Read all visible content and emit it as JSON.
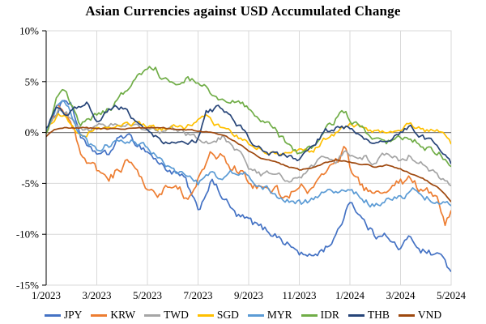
{
  "title": "Asian Currencies against USD Accumulated Change",
  "colors": {
    "background": "#FFFFFF",
    "grid": "#D9D9D9",
    "frame": "#BFBFBF",
    "zero_line": "#7F7F7F",
    "axis": "#000000",
    "text": "#000000"
  },
  "chart_data": {
    "type": "line",
    "title": "Asian Currencies against USD Accumulated Change",
    "xlabel": "",
    "ylabel": "",
    "x_unit": "month index from 1/2023",
    "xlim": [
      0,
      16
    ],
    "ylim": [
      -15,
      10
    ],
    "grid": true,
    "legend_position": "bottom",
    "x_ticks": [
      {
        "pos": 0,
        "label": "1/2023"
      },
      {
        "pos": 2,
        "label": "3/2023"
      },
      {
        "pos": 4,
        "label": "5/2023"
      },
      {
        "pos": 6,
        "label": "7/2023"
      },
      {
        "pos": 8,
        "label": "9/2023"
      },
      {
        "pos": 10,
        "label": "11/2023"
      },
      {
        "pos": 12,
        "label": "1/2024"
      },
      {
        "pos": 14,
        "label": "3/2024"
      },
      {
        "pos": 16,
        "label": "5/2024"
      }
    ],
    "y_ticks": [
      {
        "pos": 10,
        "label": "10%"
      },
      {
        "pos": 5,
        "label": "5%"
      },
      {
        "pos": 0,
        "label": "0%"
      },
      {
        "pos": -5,
        "label": "-5%"
      },
      {
        "pos": -10,
        "label": "-10%"
      },
      {
        "pos": -15,
        "label": "-15%"
      }
    ],
    "series": [
      {
        "name": "JPY",
        "color": "#4472C4",
        "jitter": 0.7,
        "points": [
          [
            0,
            0.3
          ],
          [
            0.3,
            1.5
          ],
          [
            0.7,
            3.5
          ],
          [
            1,
            2.6
          ],
          [
            1.4,
            -0.5
          ],
          [
            1.7,
            -1.9
          ],
          [
            2,
            -2.0
          ],
          [
            2.4,
            -2.3
          ],
          [
            3,
            -0.2
          ],
          [
            3.5,
            -0.9
          ],
          [
            4,
            -1.8
          ],
          [
            4.5,
            -3.1
          ],
          [
            5,
            -3.9
          ],
          [
            5.5,
            -4.7
          ],
          [
            6,
            -7.9
          ],
          [
            6.5,
            -4.7
          ],
          [
            7,
            -6.4
          ],
          [
            7.5,
            -8.2
          ],
          [
            8,
            -8.7
          ],
          [
            8.5,
            -9.4
          ],
          [
            9,
            -9.9
          ],
          [
            9.5,
            -10.9
          ],
          [
            10,
            -11.8
          ],
          [
            10.4,
            -12.3
          ],
          [
            11,
            -11.4
          ],
          [
            11.5,
            -10.1
          ],
          [
            12,
            -6.5
          ],
          [
            12.5,
            -8.6
          ],
          [
            13,
            -10.2
          ],
          [
            13.3,
            -9.6
          ],
          [
            13.6,
            -10.8
          ],
          [
            14,
            -11.4
          ],
          [
            14.4,
            -10.3
          ],
          [
            14.8,
            -11.4
          ],
          [
            15,
            -11.7
          ],
          [
            15.4,
            -12.0
          ],
          [
            15.7,
            -12.2
          ],
          [
            16,
            -13.8
          ]
        ]
      },
      {
        "name": "KRW",
        "color": "#ED7D31",
        "jitter": 0.85,
        "points": [
          [
            0,
            -0.3
          ],
          [
            0.4,
            2.4
          ],
          [
            0.8,
            2.2
          ],
          [
            1.2,
            -0.5
          ],
          [
            1.6,
            -3.1
          ],
          [
            2,
            -3.9
          ],
          [
            2.5,
            -4.6
          ],
          [
            3,
            -3.3
          ],
          [
            3.4,
            -2.7
          ],
          [
            3.8,
            -4.5
          ],
          [
            4,
            -5.3
          ],
          [
            4.4,
            -5.9
          ],
          [
            4.8,
            -5.0
          ],
          [
            5.2,
            -5.6
          ],
          [
            5.6,
            -6.3
          ],
          [
            6,
            -4.6
          ],
          [
            6.5,
            -1.9
          ],
          [
            7,
            -2.6
          ],
          [
            7.5,
            -3.6
          ],
          [
            8,
            -4.9
          ],
          [
            8.5,
            -5.3
          ],
          [
            9,
            -5.6
          ],
          [
            9.5,
            -6.4
          ],
          [
            10,
            -5.3
          ],
          [
            10.5,
            -5.9
          ],
          [
            11,
            -3.6
          ],
          [
            11.5,
            -2.9
          ],
          [
            11.8,
            -1.8
          ],
          [
            12.2,
            -4.9
          ],
          [
            12.6,
            -5.6
          ],
          [
            13,
            -6.2
          ],
          [
            13.5,
            -5.4
          ],
          [
            14,
            -5.0
          ],
          [
            14.3,
            -4.5
          ],
          [
            14.7,
            -5.3
          ],
          [
            15,
            -5.7
          ],
          [
            15.4,
            -6.1
          ],
          [
            15.75,
            -8.8
          ],
          [
            16,
            -7.7
          ]
        ]
      },
      {
        "name": "TWD",
        "color": "#A5A5A5",
        "jitter": 0.5,
        "points": [
          [
            0,
            0.2
          ],
          [
            0.5,
            2.1
          ],
          [
            0.8,
            1.9
          ],
          [
            1.3,
            0.2
          ],
          [
            2,
            0.5
          ],
          [
            2.5,
            0.7
          ],
          [
            3,
            0.8
          ],
          [
            3.5,
            0.4
          ],
          [
            4,
            0.3
          ],
          [
            4.5,
            0.1
          ],
          [
            5,
            0.3
          ],
          [
            5.5,
            -0.2
          ],
          [
            6,
            -0.5
          ],
          [
            6.5,
            -1.1
          ],
          [
            7,
            -0.4
          ],
          [
            7.5,
            -1.6
          ],
          [
            8,
            -3.4
          ],
          [
            8.5,
            -4.1
          ],
          [
            9,
            -3.9
          ],
          [
            9.5,
            -4.6
          ],
          [
            10,
            -4.4
          ],
          [
            10.6,
            -3.2
          ],
          [
            11,
            -2.2
          ],
          [
            11.4,
            -3.1
          ],
          [
            11.8,
            -1.6
          ],
          [
            12.2,
            -2.7
          ],
          [
            12.6,
            -2.4
          ],
          [
            13,
            -3.0
          ],
          [
            13.4,
            -2.1
          ],
          [
            14,
            -2.8
          ],
          [
            14.4,
            -2.2
          ],
          [
            15,
            -3.4
          ],
          [
            15.5,
            -4.3
          ],
          [
            16,
            -5.3
          ]
        ]
      },
      {
        "name": "SGD",
        "color": "#FFC000",
        "jitter": 0.45,
        "points": [
          [
            0,
            0.0
          ],
          [
            0.5,
            2.0
          ],
          [
            0.8,
            1.4
          ],
          [
            1.3,
            -0.3
          ],
          [
            2,
            0.3
          ],
          [
            2.5,
            0.5
          ],
          [
            3,
            0.7
          ],
          [
            3.5,
            0.9
          ],
          [
            4,
            0.7
          ],
          [
            4.5,
            0.3
          ],
          [
            5,
            0.6
          ],
          [
            5.5,
            0.3
          ],
          [
            6,
            1.2
          ],
          [
            6.3,
            1.5
          ],
          [
            6.8,
            0.6
          ],
          [
            7.5,
            -0.3
          ],
          [
            8,
            -1.1
          ],
          [
            8.5,
            -1.7
          ],
          [
            9,
            -1.9
          ],
          [
            9.5,
            -2.1
          ],
          [
            10,
            -1.7
          ],
          [
            10.5,
            -1.9
          ],
          [
            11,
            -0.7
          ],
          [
            11.5,
            -0.1
          ],
          [
            12,
            0.9
          ],
          [
            12.4,
            0.5
          ],
          [
            13,
            0.0
          ],
          [
            13.5,
            0.3
          ],
          [
            14,
            0.2
          ],
          [
            14.4,
            0.8
          ],
          [
            15,
            0.2
          ],
          [
            15.5,
            0.0
          ],
          [
            15.8,
            -0.3
          ],
          [
            16,
            -1.2
          ]
        ]
      },
      {
        "name": "MYR",
        "color": "#5B9BD5",
        "jitter": 0.6,
        "points": [
          [
            0,
            0.2
          ],
          [
            0.5,
            3.0
          ],
          [
            0.8,
            2.9
          ],
          [
            1.3,
            -0.2
          ],
          [
            1.7,
            -1.2
          ],
          [
            2.2,
            -1.6
          ],
          [
            3,
            -0.6
          ],
          [
            3.5,
            -1.1
          ],
          [
            4,
            -1.6
          ],
          [
            4.5,
            -2.9
          ],
          [
            5,
            -3.8
          ],
          [
            5.5,
            -4.3
          ],
          [
            6,
            -5.1
          ],
          [
            6.5,
            -3.9
          ],
          [
            7,
            -4.6
          ],
          [
            7.4,
            -4.0
          ],
          [
            8,
            -4.3
          ],
          [
            8.5,
            -5.1
          ],
          [
            9,
            -5.9
          ],
          [
            9.5,
            -6.6
          ],
          [
            10,
            -7.0
          ],
          [
            10.5,
            -6.7
          ],
          [
            11,
            -5.9
          ],
          [
            11.5,
            -5.5
          ],
          [
            12,
            -5.7
          ],
          [
            12.5,
            -6.5
          ],
          [
            13,
            -7.3
          ],
          [
            13.5,
            -6.7
          ],
          [
            14,
            -6.3
          ],
          [
            14.5,
            -5.8
          ],
          [
            15,
            -6.3
          ],
          [
            15.5,
            -6.6
          ],
          [
            16,
            -7.4
          ]
        ]
      },
      {
        "name": "IDR",
        "color": "#70AD47",
        "jitter": 0.6,
        "points": [
          [
            0,
            0.1
          ],
          [
            0.5,
            3.8
          ],
          [
            0.8,
            4.3
          ],
          [
            1.3,
            0.9
          ],
          [
            2,
            1.6
          ],
          [
            2.5,
            2.3
          ],
          [
            3,
            3.6
          ],
          [
            3.5,
            5.1
          ],
          [
            4,
            6.4
          ],
          [
            4.3,
            6.6
          ],
          [
            4.6,
            5.1
          ],
          [
            5,
            4.7
          ],
          [
            5.5,
            5.3
          ],
          [
            6,
            4.9
          ],
          [
            6.5,
            4.1
          ],
          [
            7,
            3.2
          ],
          [
            7.5,
            2.9
          ],
          [
            8,
            2.4
          ],
          [
            8.5,
            1.3
          ],
          [
            9,
            0.2
          ],
          [
            9.5,
            -1.0
          ],
          [
            10,
            -1.9
          ],
          [
            10.5,
            -1.3
          ],
          [
            11,
            0.3
          ],
          [
            11.8,
            2.0
          ],
          [
            12.2,
            0.8
          ],
          [
            12.6,
            0.1
          ],
          [
            13,
            -0.7
          ],
          [
            13.5,
            -1.0
          ],
          [
            14,
            -0.4
          ],
          [
            14.5,
            -0.7
          ],
          [
            15,
            -1.5
          ],
          [
            15.5,
            -1.9
          ],
          [
            16,
            -3.6
          ]
        ]
      },
      {
        "name": "THB",
        "color": "#264478",
        "jitter": 0.5,
        "points": [
          [
            0,
            0.4
          ],
          [
            0.4,
            2.3
          ],
          [
            0.8,
            1.7
          ],
          [
            1.2,
            2.4
          ],
          [
            1.6,
            2.9
          ],
          [
            2,
            1.2
          ],
          [
            2.5,
            2.2
          ],
          [
            3,
            2.5
          ],
          [
            3.5,
            1.1
          ],
          [
            4,
            0.2
          ],
          [
            4.5,
            -0.7
          ],
          [
            5,
            -1.1
          ],
          [
            5.5,
            -0.9
          ],
          [
            6,
            -0.6
          ],
          [
            6.3,
            2.0
          ],
          [
            6.8,
            2.4
          ],
          [
            7.3,
            1.4
          ],
          [
            7.8,
            0.2
          ],
          [
            8.2,
            -1.5
          ],
          [
            8.6,
            -1.9
          ],
          [
            9,
            -2.1
          ],
          [
            9.5,
            -2.3
          ],
          [
            10,
            -2.5
          ],
          [
            10.5,
            -1.6
          ],
          [
            11,
            0.1
          ],
          [
            11.5,
            0.4
          ],
          [
            12,
            0.5
          ],
          [
            12.5,
            -0.3
          ],
          [
            13,
            -0.9
          ],
          [
            13.5,
            -0.5
          ],
          [
            14,
            0.1
          ],
          [
            14.4,
            0.5
          ],
          [
            15,
            -0.7
          ],
          [
            15.5,
            -1.5
          ],
          [
            16,
            -3.0
          ]
        ]
      },
      {
        "name": "VND",
        "color": "#9E480E",
        "jitter": 0.12,
        "points": [
          [
            0,
            -0.4
          ],
          [
            0.3,
            0.3
          ],
          [
            1,
            0.5
          ],
          [
            2,
            0.4
          ],
          [
            3,
            0.3
          ],
          [
            4,
            0.5
          ],
          [
            5,
            0.4
          ],
          [
            5.5,
            0.3
          ],
          [
            6,
            0.2
          ],
          [
            6.5,
            0.0
          ],
          [
            7,
            -0.3
          ],
          [
            7.5,
            -0.9
          ],
          [
            8,
            -1.8
          ],
          [
            8.5,
            -2.5
          ],
          [
            9,
            -2.9
          ],
          [
            9.5,
            -3.3
          ],
          [
            10,
            -3.7
          ],
          [
            10.5,
            -3.4
          ],
          [
            11,
            -3.0
          ],
          [
            11.5,
            -2.7
          ],
          [
            12,
            -2.9
          ],
          [
            12.5,
            -3.1
          ],
          [
            13,
            -3.4
          ],
          [
            13.5,
            -3.2
          ],
          [
            14,
            -3.6
          ],
          [
            14.5,
            -4.1
          ],
          [
            15,
            -4.7
          ],
          [
            15.5,
            -5.4
          ],
          [
            16,
            -6.8
          ]
        ]
      }
    ]
  }
}
